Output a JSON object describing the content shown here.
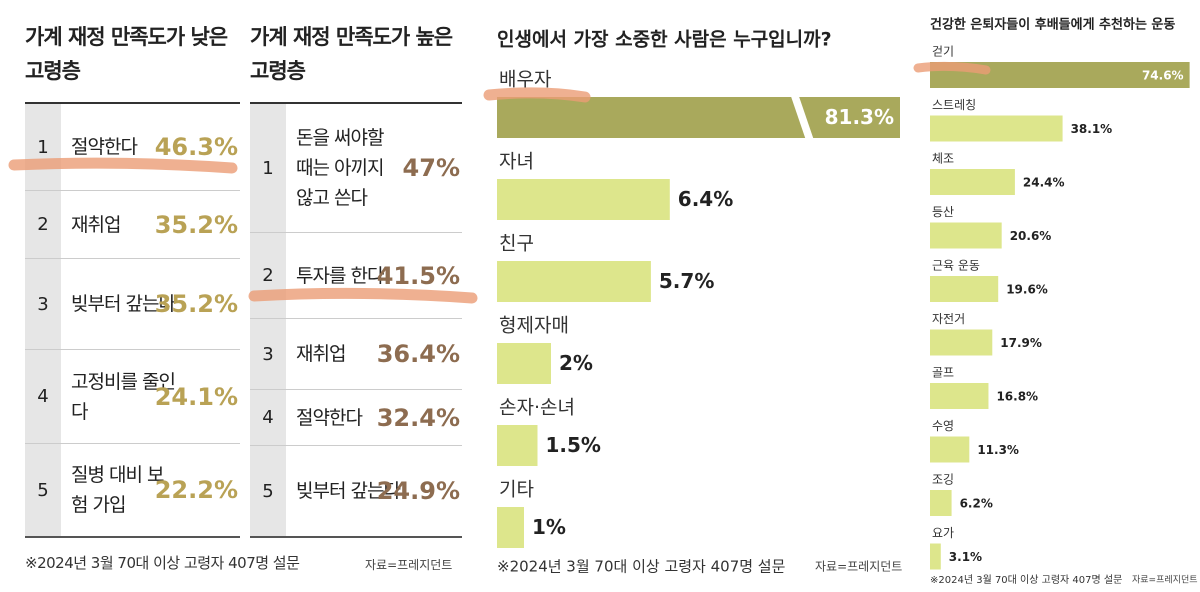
{
  "chart_data": [
    {
      "type": "ranking",
      "title": "가계 재정 만족도가 낮은 고령층",
      "ranks": [
        1,
        2,
        3,
        4,
        5
      ],
      "categories": [
        "절약한다",
        "재취업",
        "빚부터 갚는다",
        "고정비를 줄인다",
        "질병 대비 보험 가입"
      ],
      "values": [
        46.3,
        35.2,
        35.2,
        24.1,
        22.2
      ],
      "value_labels": [
        "46.3%",
        "35.2%",
        "35.2%",
        "24.1%",
        "22.2%"
      ],
      "color": "#b9a255",
      "note": "※2024년 3월 70대 이상 고령자 407명 설문"
    },
    {
      "type": "ranking",
      "title": "가계 재정 만족도가 높은 고령층",
      "ranks": [
        1,
        2,
        3,
        4,
        5
      ],
      "categories": [
        "돈을 써야할 때는 아끼지 않고 쓴다",
        "투자를 한다",
        "재취업",
        "절약한다",
        "빚부터 갚는다"
      ],
      "values": [
        47,
        41.5,
        36.4,
        32.4,
        24.9
      ],
      "value_labels": [
        "47%",
        "41.5%",
        "36.4%",
        "32.4%",
        "24.9%"
      ],
      "color": "#8d6c50",
      "source": "자료=프레지던트"
    },
    {
      "type": "bar",
      "title": "인생에서 가장 소중한 사람은 누구입니까?",
      "categories": [
        "배우자",
        "자녀",
        "친구",
        "형제자매",
        "손자·손녀",
        "기타"
      ],
      "values": [
        81.3,
        6.4,
        5.7,
        2,
        1.5,
        1
      ],
      "value_labels": [
        "81.3%",
        "6.4%",
        "5.7%",
        "2%",
        "1.5%",
        "1%"
      ],
      "colors": [
        "#a9a95c",
        "#dde68c",
        "#dde68c",
        "#dde68c",
        "#dde68c",
        "#dde68c"
      ],
      "note": "※2024년 3월 70대 이상 고령자 407명 설문",
      "source": "자료=프레지던트"
    },
    {
      "type": "bar",
      "title": "건강한 은퇴자들이 후배들에게 추천하는 운동",
      "categories": [
        "걷기",
        "스트레칭",
        "체조",
        "등산",
        "근육 운동",
        "자전거",
        "골프",
        "수영",
        "조깅",
        "요가"
      ],
      "values": [
        74.6,
        38.1,
        24.4,
        20.6,
        19.6,
        17.9,
        16.8,
        11.3,
        6.2,
        3.1
      ],
      "value_labels": [
        "74.6%",
        "38.1%",
        "24.4%",
        "20.6%",
        "19.6%",
        "17.9%",
        "16.8%",
        "11.3%",
        "6.2%",
        "3.1%"
      ],
      "colors": [
        "#a9a95c",
        "#dde68c",
        "#dde68c",
        "#dde68c",
        "#dde68c",
        "#dde68c",
        "#dde68c",
        "#dde68c",
        "#dde68c",
        "#dde68c"
      ],
      "note": "※2024년 3월 70대 이상 고령자 407명 설문",
      "source": "자료=프레지던트"
    }
  ]
}
